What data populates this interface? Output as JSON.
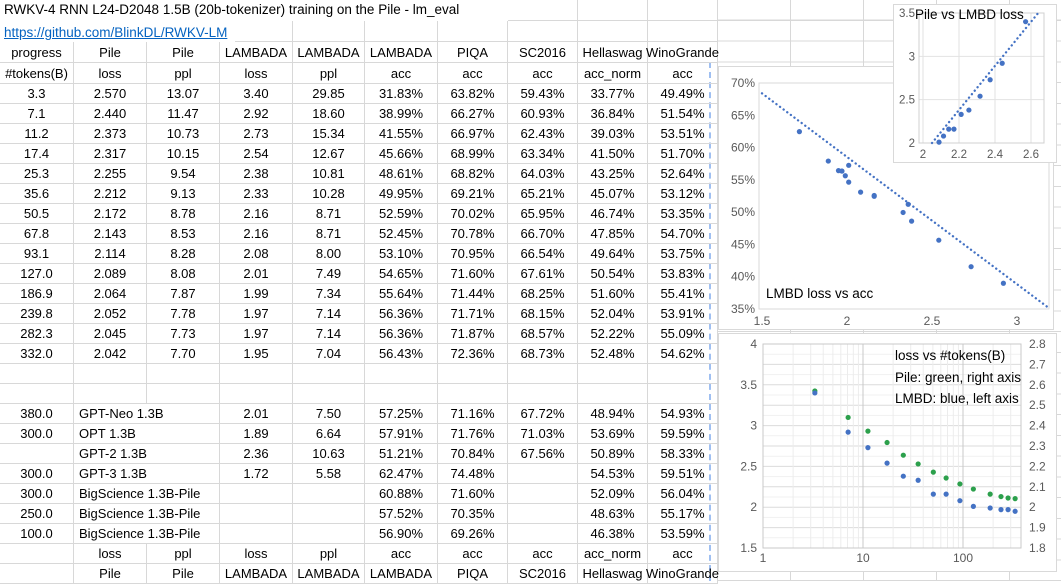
{
  "sheet": {
    "title": "RWKV-4 RNN L24-D2048 1.5B (20b-tokenizer) training on the Pile - lm_eval",
    "link": "https://github.com/BlinkDL/RWKV-LM"
  },
  "colors": {
    "blue": "#4472C4",
    "green": "#2CA04C",
    "link": "#0563C1",
    "gridline": "#D8D8D8",
    "axis_label": "#595959"
  },
  "table": {
    "header_row1": [
      "progress",
      "Pile",
      "Pile",
      "LAMBADA",
      "LAMBADA",
      "LAMBADA",
      "PIQA",
      "SC2016",
      "Hellaswag",
      "WinoGrande"
    ],
    "header_row2": [
      "#tokens(B)",
      "loss",
      "ppl",
      "loss",
      "ppl",
      "acc",
      "acc",
      "acc",
      "acc_norm",
      "acc"
    ],
    "rows": [
      [
        "3.3",
        "2.570",
        "13.07",
        "3.40",
        "29.85",
        "31.83%",
        "63.82%",
        "59.43%",
        "33.77%",
        "49.49%"
      ],
      [
        "7.1",
        "2.440",
        "11.47",
        "2.92",
        "18.60",
        "38.99%",
        "66.27%",
        "60.93%",
        "36.84%",
        "51.54%"
      ],
      [
        "11.2",
        "2.373",
        "10.73",
        "2.73",
        "15.34",
        "41.55%",
        "66.97%",
        "62.43%",
        "39.03%",
        "53.51%"
      ],
      [
        "17.4",
        "2.317",
        "10.15",
        "2.54",
        "12.67",
        "45.66%",
        "68.99%",
        "63.34%",
        "41.50%",
        "51.70%"
      ],
      [
        "25.3",
        "2.255",
        "9.54",
        "2.38",
        "10.81",
        "48.61%",
        "68.82%",
        "64.03%",
        "43.25%",
        "52.64%"
      ],
      [
        "35.6",
        "2.212",
        "9.13",
        "2.33",
        "10.28",
        "49.95%",
        "69.21%",
        "65.21%",
        "45.07%",
        "53.12%"
      ],
      [
        "50.5",
        "2.172",
        "8.78",
        "2.16",
        "8.71",
        "52.59%",
        "70.02%",
        "65.95%",
        "46.74%",
        "53.35%"
      ],
      [
        "67.8",
        "2.143",
        "8.53",
        "2.16",
        "8.71",
        "52.45%",
        "70.78%",
        "66.70%",
        "47.85%",
        "54.70%"
      ],
      [
        "93.1",
        "2.114",
        "8.28",
        "2.08",
        "8.00",
        "53.10%",
        "70.95%",
        "66.54%",
        "49.64%",
        "53.75%"
      ],
      [
        "127.0",
        "2.089",
        "8.08",
        "2.01",
        "7.49",
        "54.65%",
        "71.60%",
        "67.61%",
        "50.54%",
        "53.83%"
      ],
      [
        "186.9",
        "2.064",
        "7.87",
        "1.99",
        "7.34",
        "55.64%",
        "71.44%",
        "68.25%",
        "51.60%",
        "55.41%"
      ],
      [
        "239.8",
        "2.052",
        "7.78",
        "1.97",
        "7.14",
        "56.36%",
        "71.71%",
        "68.15%",
        "52.04%",
        "53.91%"
      ],
      [
        "282.3",
        "2.045",
        "7.73",
        "1.97",
        "7.14",
        "56.36%",
        "71.87%",
        "68.57%",
        "52.22%",
        "55.09%"
      ],
      [
        "332.0",
        "2.042",
        "7.70",
        "1.95",
        "7.04",
        "56.43%",
        "72.36%",
        "68.73%",
        "52.48%",
        "54.62%"
      ]
    ],
    "model_rows": [
      [
        "380.0",
        "GPT-Neo 1.3B",
        "",
        "2.01",
        "7.50",
        "57.25%",
        "71.16%",
        "67.72%",
        "48.94%",
        "54.93%"
      ],
      [
        "300.0",
        "OPT 1.3B",
        "",
        "1.89",
        "6.64",
        "57.91%",
        "71.76%",
        "71.03%",
        "53.69%",
        "59.59%"
      ],
      [
        "",
        "GPT-2 1.3B",
        "",
        "2.36",
        "10.63",
        "51.21%",
        "70.84%",
        "67.56%",
        "50.89%",
        "58.33%"
      ],
      [
        "300.0",
        "GPT-3 1.3B",
        "",
        "1.72",
        "5.58",
        "62.47%",
        "74.48%",
        "",
        "54.53%",
        "59.51%"
      ],
      [
        "300.0",
        "BigScience 1.3B-Pile",
        "",
        "",
        "",
        "60.88%",
        "71.60%",
        "",
        "52.09%",
        "56.04%"
      ],
      [
        "250.0",
        "BigScience 1.3B-Pile",
        "",
        "",
        "",
        "57.52%",
        "70.35%",
        "",
        "48.63%",
        "55.17%"
      ],
      [
        "100.0",
        "BigScience 1.3B-Pile",
        "",
        "",
        "",
        "56.90%",
        "69.26%",
        "",
        "46.38%",
        "53.59%"
      ]
    ],
    "footer_row1": [
      "",
      "loss",
      "ppl",
      "loss",
      "ppl",
      "acc",
      "acc",
      "acc",
      "acc_norm",
      "acc"
    ],
    "footer_row2": [
      "",
      "Pile",
      "Pile",
      "LAMBADA",
      "LAMBADA",
      "LAMBADA",
      "PIQA",
      "SC2016",
      "Hellaswag",
      "WinoGrande"
    ]
  },
  "chart_data": [
    {
      "type": "scatter",
      "title": "Pile vs LMBD loss",
      "x_ticks": [
        2,
        2.2,
        2.4,
        2.6
      ],
      "y_ticks": [
        3.5,
        3,
        2.5,
        2
      ],
      "xlim": [
        1.98,
        2.67
      ],
      "ylim": [
        2,
        3.5
      ],
      "dot_color": "#4472C4",
      "points": [
        [
          2.57,
          3.4
        ],
        [
          2.44,
          2.92
        ],
        [
          2.373,
          2.73
        ],
        [
          2.317,
          2.54
        ],
        [
          2.255,
          2.38
        ],
        [
          2.212,
          2.33
        ],
        [
          2.172,
          2.16
        ],
        [
          2.143,
          2.16
        ],
        [
          2.114,
          2.08
        ],
        [
          2.089,
          2.01
        ],
        [
          2.064,
          1.99
        ],
        [
          2.052,
          1.97
        ],
        [
          2.045,
          1.97
        ],
        [
          2.042,
          1.95
        ]
      ],
      "trendline": {
        "x": [
          2.05,
          2.64
        ],
        "y": [
          2.0,
          3.5
        ]
      }
    },
    {
      "type": "scatter",
      "title": "LMBD loss vs acc",
      "x_ticks": [
        1.5,
        2,
        2.5,
        3
      ],
      "y_ticks_pct": [
        70,
        65,
        60,
        55,
        50,
        45,
        40,
        35
      ],
      "xlim": [
        1.5,
        3.19
      ],
      "ylim": [
        35,
        70
      ],
      "dot_color": "#4472C4",
      "points": [
        [
          3.4,
          31.83
        ],
        [
          2.92,
          38.99
        ],
        [
          2.73,
          41.55
        ],
        [
          2.54,
          45.66
        ],
        [
          2.38,
          48.61
        ],
        [
          2.33,
          49.95
        ],
        [
          2.16,
          52.59
        ],
        [
          2.16,
          52.45
        ],
        [
          2.08,
          53.1
        ],
        [
          2.01,
          54.65
        ],
        [
          1.99,
          55.64
        ],
        [
          1.97,
          56.36
        ],
        [
          1.97,
          56.36
        ],
        [
          1.95,
          56.43
        ],
        [
          2.01,
          57.25
        ],
        [
          1.89,
          57.91
        ],
        [
          2.36,
          51.21
        ],
        [
          1.72,
          62.47
        ]
      ],
      "trendline": {
        "x": [
          1.5,
          3.19
        ],
        "y": [
          68.4,
          35.1
        ]
      }
    },
    {
      "type": "scatter",
      "title": "loss vs #tokens(B)",
      "annotation": [
        "loss vs #tokens(B)",
        "Pile: green, right axis",
        "LMBD: blue, left axis"
      ],
      "x_log_ticks": [
        1,
        10,
        100
      ],
      "left_ticks": [
        4,
        3.5,
        3,
        2.5,
        2,
        1.5
      ],
      "left_ylim": [
        1.5,
        4
      ],
      "right_ticks": [
        2.8,
        2.7,
        2.6,
        2.5,
        2.4,
        2.3,
        2.2,
        2.1,
        2,
        1.9,
        1.8
      ],
      "right_ylim": [
        1.8,
        2.8
      ],
      "x": [
        3.3,
        7.1,
        11.2,
        17.4,
        25.3,
        35.6,
        50.5,
        67.8,
        93.1,
        127.0,
        186.9,
        239.8,
        282.3,
        332.0
      ],
      "series": [
        {
          "name": "Pile loss",
          "axis": "right",
          "color": "#2CA04C",
          "values": [
            2.57,
            2.44,
            2.373,
            2.317,
            2.255,
            2.212,
            2.172,
            2.143,
            2.114,
            2.089,
            2.064,
            2.052,
            2.045,
            2.042
          ]
        },
        {
          "name": "LMBD loss",
          "axis": "left",
          "color": "#4472C4",
          "values": [
            3.4,
            2.92,
            2.73,
            2.54,
            2.38,
            2.33,
            2.16,
            2.16,
            2.08,
            2.01,
            1.99,
            1.97,
            1.97,
            1.95
          ]
        }
      ]
    }
  ]
}
